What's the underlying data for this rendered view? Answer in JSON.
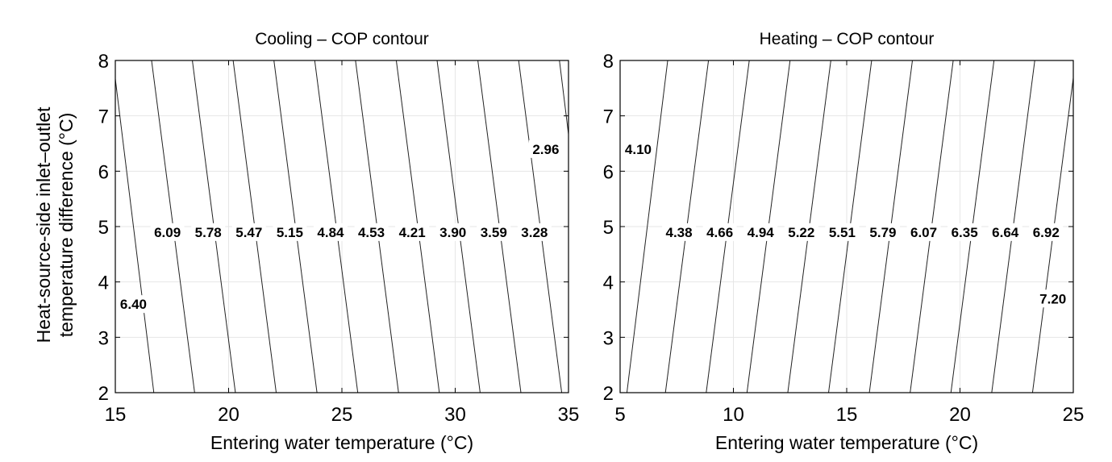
{
  "chart_data": [
    {
      "type": "contour",
      "title": "Cooling – COP contour",
      "xlabel": "Entering water temperature (°C)",
      "ylabel": [
        "Heat-source-side inlet–outlet",
        "temperature difference (°C)"
      ],
      "xlim": [
        15,
        35
      ],
      "ylim": [
        2,
        8
      ],
      "xticks": [
        "15",
        "20",
        "25",
        "30",
        "35"
      ],
      "yticks": [
        "2",
        "3",
        "4",
        "5",
        "6",
        "7",
        "8"
      ],
      "grid": true,
      "levels": [
        {
          "label": "6.40",
          "x_at_y2": 16.7,
          "x_at_y8": 14.9,
          "label_x": 15.8,
          "label_y": 3.6
        },
        {
          "label": "6.09",
          "x_at_y2": 18.5,
          "x_at_y8": 16.6,
          "label_x": 17.3,
          "label_y": 4.9
        },
        {
          "label": "5.78",
          "x_at_y2": 20.3,
          "x_at_y8": 18.4,
          "label_x": 19.1,
          "label_y": 4.9
        },
        {
          "label": "5.47",
          "x_at_y2": 22.1,
          "x_at_y8": 20.2,
          "label_x": 20.9,
          "label_y": 4.9
        },
        {
          "label": "5.15",
          "x_at_y2": 23.9,
          "x_at_y8": 22.0,
          "label_x": 22.7,
          "label_y": 4.9
        },
        {
          "label": "4.84",
          "x_at_y2": 25.7,
          "x_at_y8": 23.8,
          "label_x": 24.5,
          "label_y": 4.9
        },
        {
          "label": "4.53",
          "x_at_y2": 27.5,
          "x_at_y8": 25.6,
          "label_x": 26.3,
          "label_y": 4.9
        },
        {
          "label": "4.21",
          "x_at_y2": 29.3,
          "x_at_y8": 27.4,
          "label_x": 28.1,
          "label_y": 4.9
        },
        {
          "label": "3.90",
          "x_at_y2": 31.1,
          "x_at_y8": 29.2,
          "label_x": 29.9,
          "label_y": 4.9
        },
        {
          "label": "3.59",
          "x_at_y2": 32.9,
          "x_at_y8": 31.0,
          "label_x": 31.7,
          "label_y": 4.9
        },
        {
          "label": "3.28",
          "x_at_y2": 34.7,
          "x_at_y8": 32.8,
          "label_x": 33.5,
          "label_y": 4.9
        },
        {
          "label": "2.96",
          "x_at_y2": 36.4,
          "x_at_y8": 34.6,
          "label_x": 34.0,
          "label_y": 6.4
        }
      ]
    },
    {
      "type": "contour",
      "title": "Heating – COP contour",
      "xlabel": "Entering water temperature (°C)",
      "ylabel": [],
      "xlim": [
        5,
        25
      ],
      "ylim": [
        2,
        8
      ],
      "xticks": [
        "5",
        "10",
        "15",
        "20",
        "25"
      ],
      "yticks": [
        "2",
        "3",
        "4",
        "5",
        "6",
        "7",
        "8"
      ],
      "grid": true,
      "levels": [
        {
          "label": "4.10",
          "x_at_y2": 5.3,
          "x_at_y8": 7.1,
          "label_x": 5.8,
          "label_y": 6.4
        },
        {
          "label": "4.38",
          "x_at_y2": 7.0,
          "x_at_y8": 8.9,
          "label_x": 7.6,
          "label_y": 4.9
        },
        {
          "label": "4.66",
          "x_at_y2": 8.8,
          "x_at_y8": 10.7,
          "label_x": 9.4,
          "label_y": 4.9
        },
        {
          "label": "4.94",
          "x_at_y2": 10.6,
          "x_at_y8": 12.5,
          "label_x": 11.2,
          "label_y": 4.9
        },
        {
          "label": "5.22",
          "x_at_y2": 12.4,
          "x_at_y8": 14.3,
          "label_x": 13.0,
          "label_y": 4.9
        },
        {
          "label": "5.51",
          "x_at_y2": 14.2,
          "x_at_y8": 16.1,
          "label_x": 14.8,
          "label_y": 4.9
        },
        {
          "label": "5.79",
          "x_at_y2": 16.0,
          "x_at_y8": 17.9,
          "label_x": 16.6,
          "label_y": 4.9
        },
        {
          "label": "6.07",
          "x_at_y2": 17.8,
          "x_at_y8": 19.7,
          "label_x": 18.4,
          "label_y": 4.9
        },
        {
          "label": "6.35",
          "x_at_y2": 19.6,
          "x_at_y8": 21.5,
          "label_x": 20.2,
          "label_y": 4.9
        },
        {
          "label": "6.64",
          "x_at_y2": 21.4,
          "x_at_y8": 23.3,
          "label_x": 22.0,
          "label_y": 4.9
        },
        {
          "label": "6.92",
          "x_at_y2": 23.2,
          "x_at_y8": 25.1,
          "label_x": 23.8,
          "label_y": 4.9
        },
        {
          "label": "7.20",
          "x_at_y2": 25.0,
          "x_at_y8": 26.9,
          "label_x": 24.1,
          "label_y": 3.7
        }
      ]
    }
  ]
}
